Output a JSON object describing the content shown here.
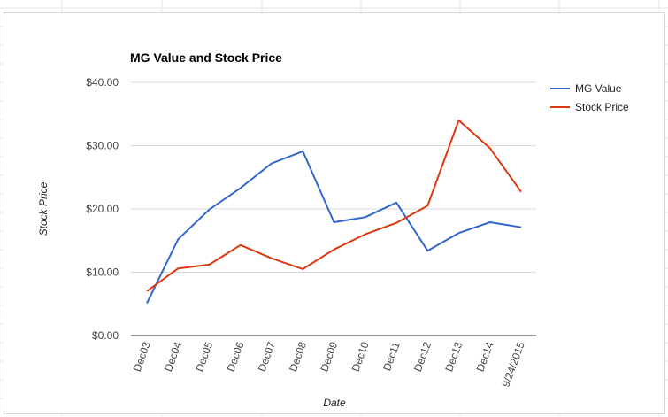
{
  "chart_data": {
    "type": "line",
    "title": "MG Value and Stock Price",
    "xlabel": "Date",
    "ylabel": "Stock Price",
    "categories": [
      "Dec03",
      "Dec04",
      "Dec05",
      "Dec06",
      "Dec07",
      "Dec08",
      "Dec09",
      "Dec10",
      "Dec11",
      "Dec12",
      "Dec13",
      "Dec14",
      "9/24/2015"
    ],
    "ylim": [
      0,
      40
    ],
    "yticks": [
      "$0.00",
      "$10.00",
      "$20.00",
      "$30.00",
      "$40.00"
    ],
    "ytick_values": [
      0,
      10,
      20,
      30,
      40
    ],
    "grid": true,
    "legend_position": "right",
    "series": [
      {
        "name": "MG Value",
        "color": "#3366cc",
        "values": [
          5.1,
          15.2,
          19.9,
          23.3,
          27.2,
          29.1,
          17.9,
          18.7,
          21.0,
          13.4,
          16.2,
          17.9,
          17.1
        ]
      },
      {
        "name": "Stock Price",
        "color": "#dc3912",
        "values": [
          7.0,
          10.6,
          11.2,
          14.3,
          12.2,
          10.5,
          13.6,
          16.0,
          17.8,
          20.5,
          34.0,
          29.6,
          22.7
        ]
      }
    ]
  }
}
